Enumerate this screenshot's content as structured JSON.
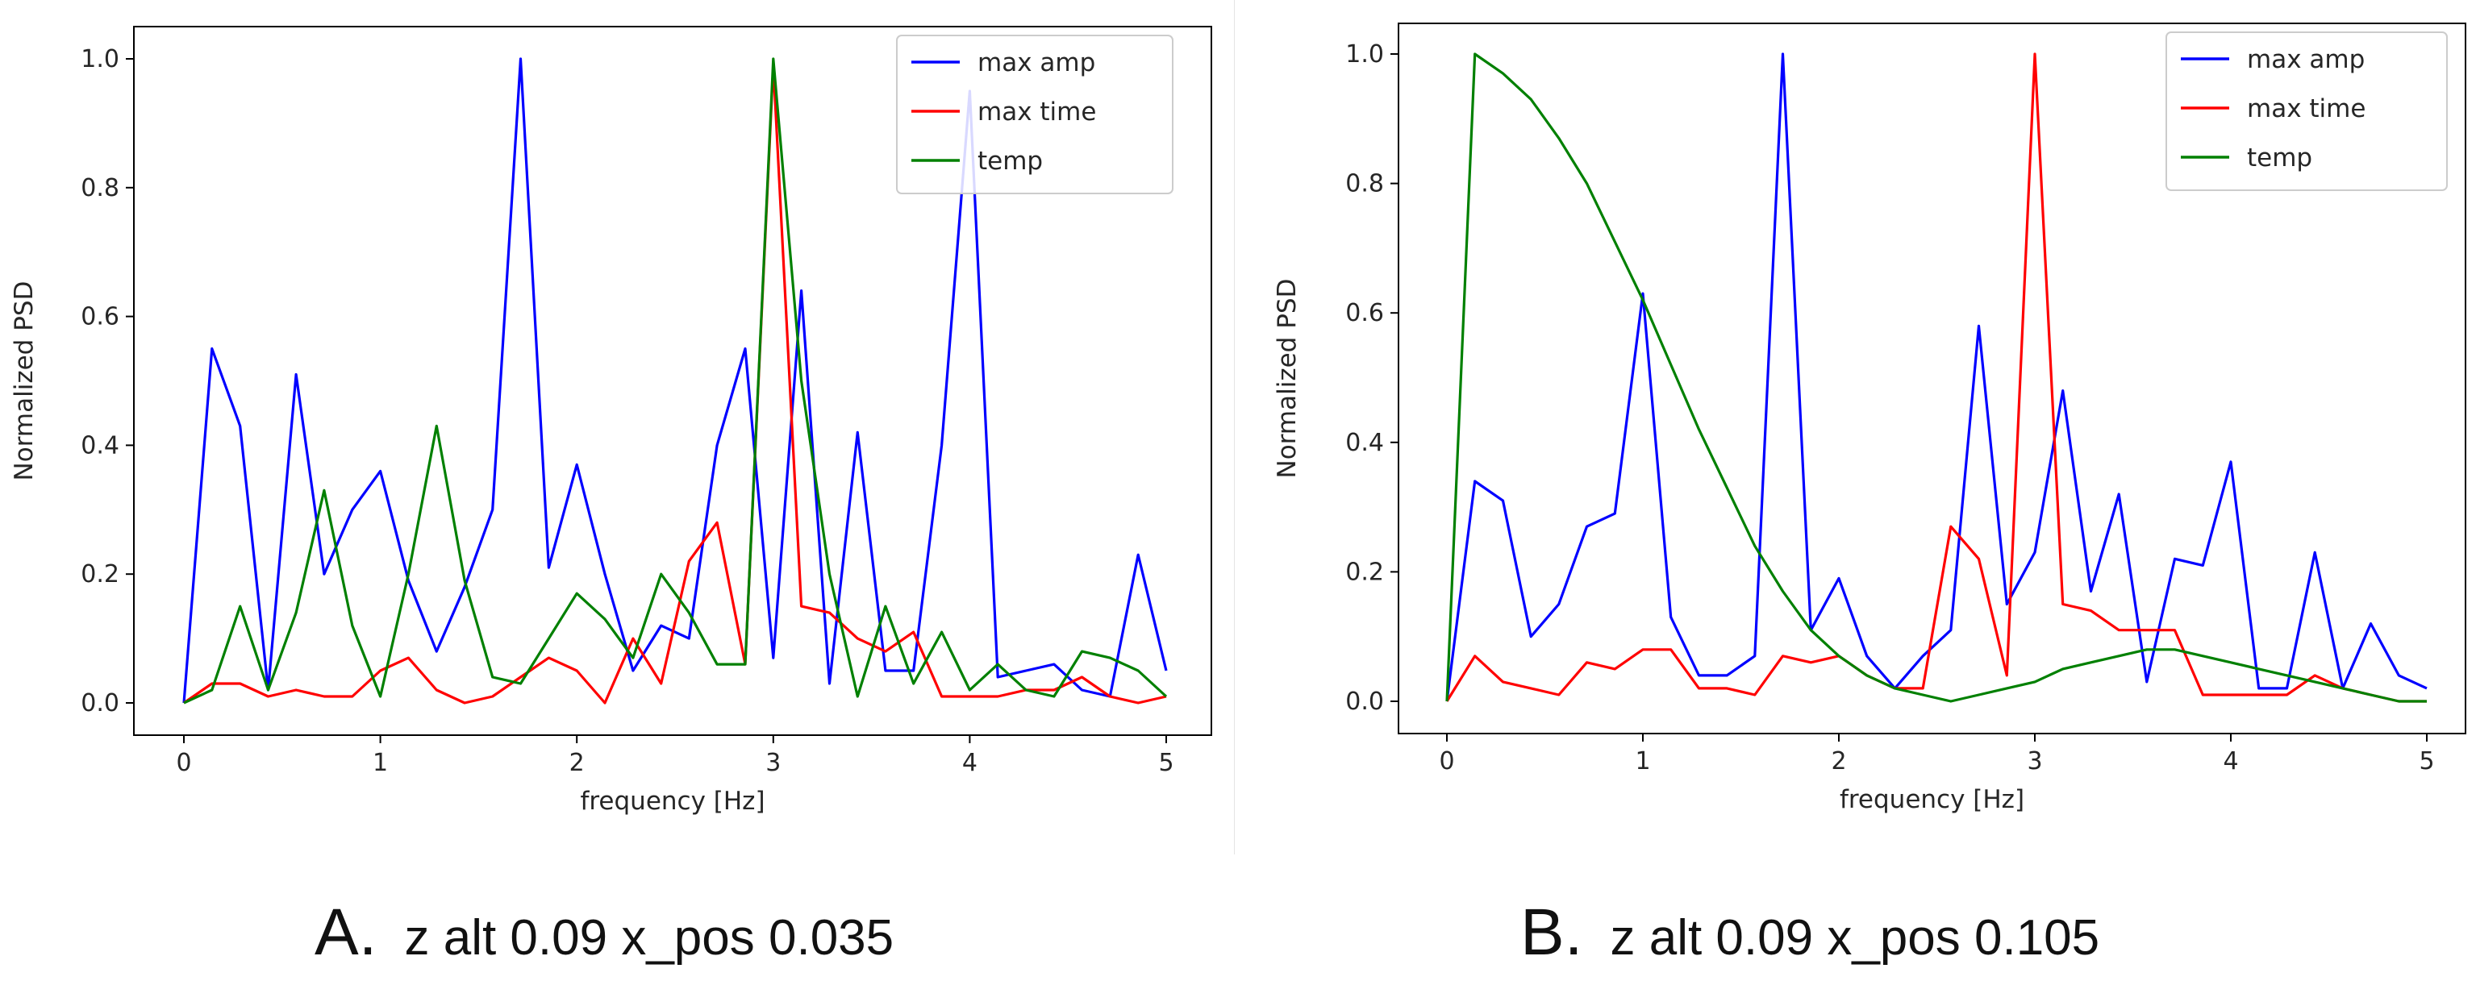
{
  "chart_data": [
    {
      "type": "line",
      "caption_letter": "A.",
      "caption_text": "z alt 0.09 x_pos 0.035",
      "title": "",
      "xlabel": "frequency [Hz]",
      "ylabel": "Normalized PSD",
      "xlim": [
        0,
        5
      ],
      "ylim": [
        0,
        1.0
      ],
      "xticks": [
        0,
        1,
        2,
        3,
        4,
        5
      ],
      "yticks": [
        0.0,
        0.2,
        0.4,
        0.6,
        0.8,
        1.0
      ],
      "xtick_labels": [
        "0",
        "1",
        "2",
        "3",
        "4",
        "5"
      ],
      "ytick_labels": [
        "0.0",
        "0.2",
        "0.4",
        "0.6",
        "0.8",
        "1.0"
      ],
      "grid": false,
      "legend_position": "upper right",
      "x": [
        0,
        0.143,
        0.286,
        0.429,
        0.571,
        0.714,
        0.857,
        1.0,
        1.143,
        1.286,
        1.429,
        1.571,
        1.714,
        1.857,
        2.0,
        2.143,
        2.286,
        2.429,
        2.571,
        2.714,
        2.857,
        3.0,
        3.143,
        3.286,
        3.429,
        3.571,
        3.714,
        3.857,
        4.0,
        4.143,
        4.286,
        4.429,
        4.571,
        4.714,
        4.857,
        5.0
      ],
      "series": [
        {
          "name": "max amp",
          "color": "#0000ff",
          "values": [
            0.0,
            0.55,
            0.43,
            0.02,
            0.51,
            0.2,
            0.3,
            0.36,
            0.19,
            0.08,
            0.18,
            0.3,
            1.0,
            0.21,
            0.37,
            0.2,
            0.05,
            0.12,
            0.1,
            0.4,
            0.55,
            0.07,
            0.64,
            0.03,
            0.42,
            0.05,
            0.05,
            0.4,
            0.95,
            0.04,
            0.05,
            0.06,
            0.02,
            0.01,
            0.23,
            0.05
          ]
        },
        {
          "name": "max time",
          "color": "#ff0000",
          "values": [
            0.0,
            0.03,
            0.03,
            0.01,
            0.02,
            0.01,
            0.01,
            0.05,
            0.07,
            0.02,
            0.0,
            0.01,
            0.04,
            0.07,
            0.05,
            0.0,
            0.1,
            0.03,
            0.22,
            0.28,
            0.06,
            0.99,
            0.15,
            0.14,
            0.1,
            0.08,
            0.11,
            0.01,
            0.01,
            0.01,
            0.02,
            0.02,
            0.04,
            0.01,
            0.0,
            0.01
          ]
        },
        {
          "name": "temp",
          "color": "#008000",
          "values": [
            0.0,
            0.02,
            0.15,
            0.02,
            0.14,
            0.33,
            0.12,
            0.01,
            0.2,
            0.43,
            0.19,
            0.04,
            0.03,
            0.1,
            0.17,
            0.13,
            0.07,
            0.2,
            0.14,
            0.06,
            0.06,
            1.0,
            0.5,
            0.2,
            0.01,
            0.15,
            0.03,
            0.11,
            0.02,
            0.06,
            0.02,
            0.01,
            0.08,
            0.07,
            0.05,
            0.01
          ]
        }
      ]
    },
    {
      "type": "line",
      "caption_letter": "B.",
      "caption_text": "z alt 0.09 x_pos 0.105",
      "title": "",
      "xlabel": "frequency [Hz]",
      "ylabel": "Normalized PSD",
      "xlim": [
        0,
        5
      ],
      "ylim": [
        0,
        1.0
      ],
      "xticks": [
        0,
        1,
        2,
        3,
        4,
        5
      ],
      "yticks": [
        0.0,
        0.2,
        0.4,
        0.6,
        0.8,
        1.0
      ],
      "xtick_labels": [
        "0",
        "1",
        "2",
        "3",
        "4",
        "5"
      ],
      "ytick_labels": [
        "0.0",
        "0.2",
        "0.4",
        "0.6",
        "0.8",
        "1.0"
      ],
      "grid": false,
      "legend_position": "upper right",
      "x": [
        0,
        0.143,
        0.286,
        0.429,
        0.571,
        0.714,
        0.857,
        1.0,
        1.143,
        1.286,
        1.429,
        1.571,
        1.714,
        1.857,
        2.0,
        2.143,
        2.286,
        2.429,
        2.571,
        2.714,
        2.857,
        3.0,
        3.143,
        3.286,
        3.429,
        3.571,
        3.714,
        3.857,
        4.0,
        4.143,
        4.286,
        4.429,
        4.571,
        4.714,
        4.857,
        5.0
      ],
      "series": [
        {
          "name": "max amp",
          "color": "#0000ff",
          "values": [
            0.0,
            0.34,
            0.31,
            0.1,
            0.15,
            0.27,
            0.29,
            0.63,
            0.13,
            0.04,
            0.04,
            0.07,
            1.0,
            0.11,
            0.19,
            0.07,
            0.02,
            0.07,
            0.11,
            0.58,
            0.15,
            0.23,
            0.48,
            0.17,
            0.32,
            0.03,
            0.22,
            0.21,
            0.37,
            0.02,
            0.02,
            0.23,
            0.02,
            0.12,
            0.04,
            0.02
          ]
        },
        {
          "name": "max time",
          "color": "#ff0000",
          "values": [
            0.0,
            0.07,
            0.03,
            0.02,
            0.01,
            0.06,
            0.05,
            0.08,
            0.08,
            0.02,
            0.02,
            0.01,
            0.07,
            0.06,
            0.07,
            0.04,
            0.02,
            0.02,
            0.27,
            0.22,
            0.04,
            1.0,
            0.15,
            0.14,
            0.11,
            0.11,
            0.11,
            0.01,
            0.01,
            0.01,
            0.01,
            0.04,
            0.02,
            0.01,
            0.0,
            0.0
          ]
        },
        {
          "name": "temp",
          "color": "#008000",
          "values": [
            0.0,
            1.0,
            0.97,
            0.93,
            0.87,
            0.8,
            0.71,
            0.62,
            0.52,
            0.42,
            0.33,
            0.24,
            0.17,
            0.11,
            0.07,
            0.04,
            0.02,
            0.01,
            0.0,
            0.01,
            0.02,
            0.03,
            0.05,
            0.06,
            0.07,
            0.08,
            0.08,
            0.07,
            0.06,
            0.05,
            0.04,
            0.03,
            0.02,
            0.01,
            0.0,
            0.0
          ]
        }
      ]
    }
  ]
}
